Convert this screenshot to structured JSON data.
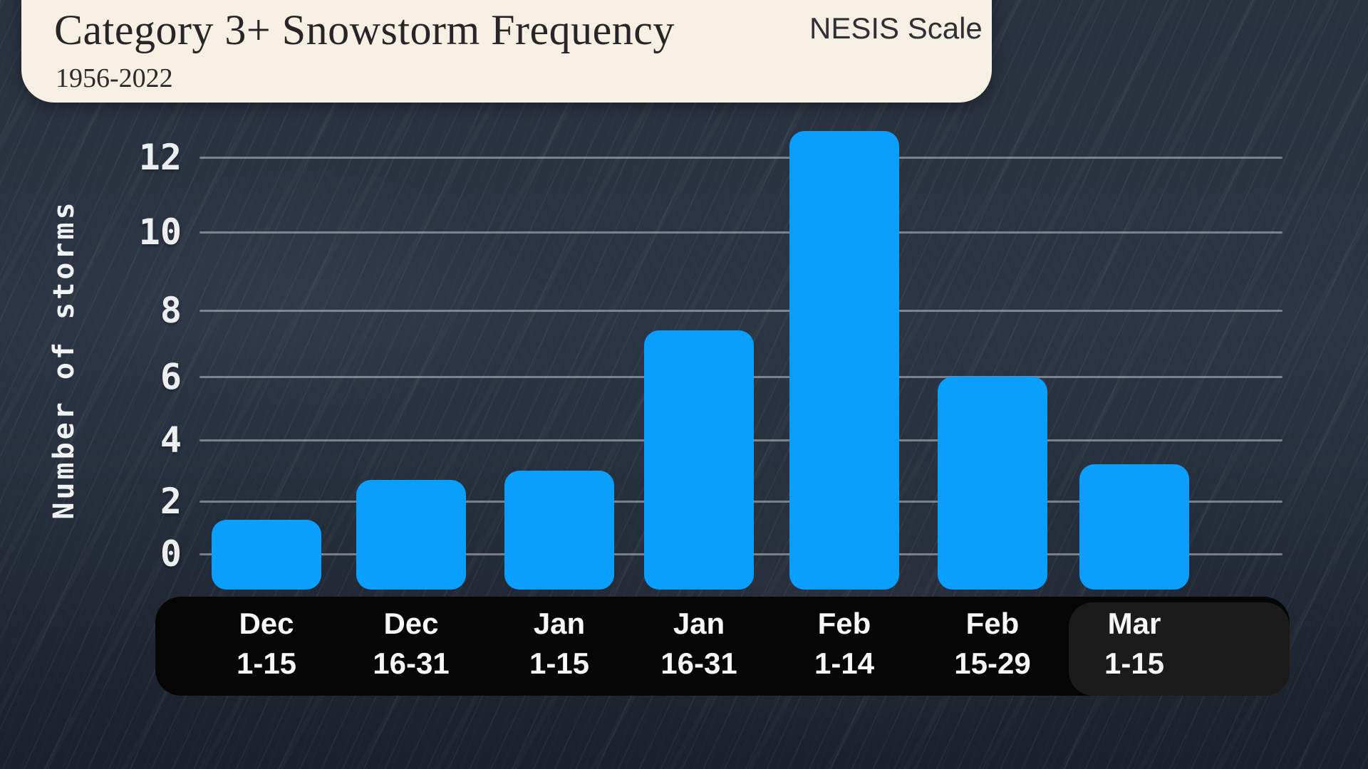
{
  "header": {
    "title": "Category 3+ Snowstorm Frequency",
    "subtitle": "1956-2022",
    "scale_label": "NESIS Scale"
  },
  "chart_data": {
    "type": "bar",
    "title": "Category 3+ Snowstorm Frequency",
    "subtitle": "1956-2022",
    "legend": "NESIS Scale",
    "ylabel": "Number of storms",
    "xlabel": "",
    "categories": [
      "Dec 1-15",
      "Dec 16-31",
      "Jan 1-15",
      "Jan 16-31",
      "Feb 1-14",
      "Feb 15-29",
      "Mar 1-15"
    ],
    "category_lines": [
      [
        "Dec",
        "1-15"
      ],
      [
        "Dec",
        "16-31"
      ],
      [
        "Jan",
        "1-15"
      ],
      [
        "Jan",
        "16-31"
      ],
      [
        "Feb",
        "1-14"
      ],
      [
        "Feb",
        "15-29"
      ],
      [
        "Mar",
        "1-15"
      ]
    ],
    "values": [
      1.3,
      2.7,
      3.0,
      7.4,
      12.7,
      6.0,
      3.2
    ],
    "yticks": [
      0,
      2,
      4,
      6,
      8,
      10,
      12
    ],
    "ylim": [
      0,
      13
    ],
    "grid": true,
    "legend_position": "top-right",
    "colors": {
      "bar": "#0a9ffd",
      "background": "#2a3341",
      "title_card": "#f6efe4",
      "axis_strip": "#060606",
      "axis_strip_highlight": "#1b1b1b",
      "gridline": "#c5cbd3",
      "tick_text": "#eceff1",
      "category_text": "#f7f7f7",
      "title_text": "#262626"
    }
  }
}
